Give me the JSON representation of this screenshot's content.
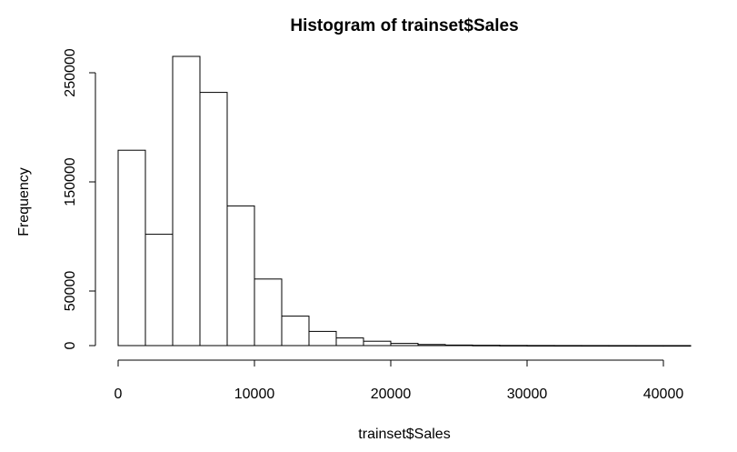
{
  "chart_data": {
    "type": "bar",
    "title": "Histogram of trainset$Sales",
    "xlabel": "trainset$Sales",
    "ylabel": "Frequency",
    "bin_width": 2000,
    "categories": [
      "0-2000",
      "2000-4000",
      "4000-6000",
      "6000-8000",
      "8000-10000",
      "10000-12000",
      "12000-14000",
      "14000-16000",
      "16000-18000",
      "18000-20000",
      "20000-22000",
      "22000-24000",
      "24000-26000",
      "26000-28000",
      "28000-30000",
      "30000-32000",
      "32000-34000",
      "34000-36000",
      "36000-38000",
      "38000-40000",
      "40000-42000"
    ],
    "bins": [
      {
        "start": 0,
        "end": 2000,
        "value": 179000
      },
      {
        "start": 2000,
        "end": 4000,
        "value": 102000
      },
      {
        "start": 4000,
        "end": 6000,
        "value": 265000
      },
      {
        "start": 6000,
        "end": 8000,
        "value": 232000
      },
      {
        "start": 8000,
        "end": 10000,
        "value": 128000
      },
      {
        "start": 10000,
        "end": 12000,
        "value": 61000
      },
      {
        "start": 12000,
        "end": 14000,
        "value": 27000
      },
      {
        "start": 14000,
        "end": 16000,
        "value": 13000
      },
      {
        "start": 16000,
        "end": 18000,
        "value": 7000
      },
      {
        "start": 18000,
        "end": 20000,
        "value": 4000
      },
      {
        "start": 20000,
        "end": 22000,
        "value": 2000
      },
      {
        "start": 22000,
        "end": 24000,
        "value": 1000
      },
      {
        "start": 24000,
        "end": 26000,
        "value": 500
      },
      {
        "start": 26000,
        "end": 28000,
        "value": 300
      },
      {
        "start": 28000,
        "end": 30000,
        "value": 150
      },
      {
        "start": 30000,
        "end": 32000,
        "value": 80
      },
      {
        "start": 32000,
        "end": 34000,
        "value": 50
      },
      {
        "start": 34000,
        "end": 36000,
        "value": 30
      },
      {
        "start": 36000,
        "end": 38000,
        "value": 20
      },
      {
        "start": 38000,
        "end": 40000,
        "value": 10
      },
      {
        "start": 40000,
        "end": 42000,
        "value": 5
      }
    ],
    "xlim": [
      0,
      42000
    ],
    "ylim": [
      0,
      270000
    ],
    "x_ticks": [
      0,
      10000,
      20000,
      30000,
      40000
    ],
    "y_ticks": [
      0,
      50000,
      150000,
      250000
    ],
    "x_tick_labels": [
      "0",
      "10000",
      "20000",
      "30000",
      "40000"
    ],
    "y_tick_labels": [
      "0",
      "50000",
      "150000",
      "250000"
    ],
    "grid": false,
    "legend": "none"
  }
}
